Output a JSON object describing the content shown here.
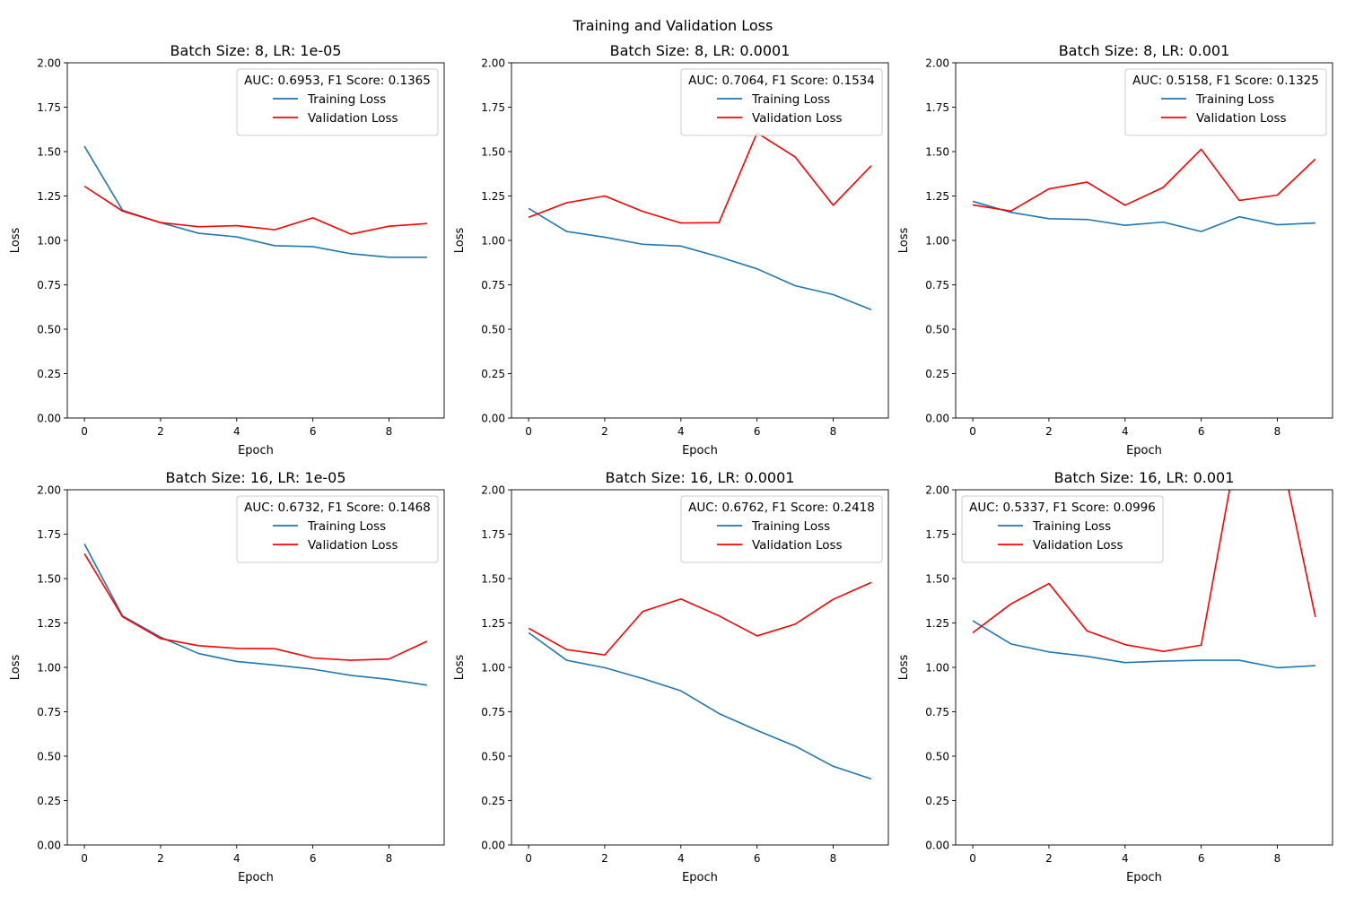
{
  "figure": {
    "title": "Training and Validation Loss"
  },
  "colors": {
    "training": "#1f77b4",
    "validation": "#ff0000"
  },
  "chart_data": [
    {
      "type": "line",
      "title": "Batch Size: 8, LR: 1e-05",
      "xlabel": "Epoch",
      "ylabel": "Loss",
      "xlim": [
        -0.45,
        9.45
      ],
      "ylim": [
        0,
        2
      ],
      "xticks": [
        0,
        2,
        4,
        6,
        8
      ],
      "yticks": [
        "0.00",
        "0.25",
        "0.50",
        "0.75",
        "1.00",
        "1.25",
        "1.50",
        "1.75",
        "2.00"
      ],
      "grid": false,
      "legend_title": "AUC: 0.6953, F1 Score: 0.1365",
      "legend_position": "upper right",
      "x": [
        0,
        1,
        2,
        3,
        4,
        5,
        6,
        7,
        8,
        9
      ],
      "series": [
        {
          "name": "Training Loss",
          "values": [
            1.53,
            1.17,
            1.1,
            1.04,
            1.02,
            0.97,
            0.965,
            0.925,
            0.905,
            0.905
          ]
        },
        {
          "name": "Validation Loss",
          "values": [
            1.305,
            1.165,
            1.1,
            1.077,
            1.083,
            1.06,
            1.127,
            1.035,
            1.08,
            1.095
          ]
        }
      ]
    },
    {
      "type": "line",
      "title": "Batch Size: 8, LR: 0.0001",
      "xlabel": "Epoch",
      "ylabel": "Loss",
      "xlim": [
        -0.45,
        9.45
      ],
      "ylim": [
        0,
        2
      ],
      "xticks": [
        0,
        2,
        4,
        6,
        8
      ],
      "yticks": [
        "0.00",
        "0.25",
        "0.50",
        "0.75",
        "1.00",
        "1.25",
        "1.50",
        "1.75",
        "2.00"
      ],
      "grid": false,
      "legend_title": "AUC: 0.7064, F1 Score: 0.1534",
      "legend_position": "upper right",
      "x": [
        0,
        1,
        2,
        3,
        4,
        5,
        6,
        7,
        8,
        9
      ],
      "series": [
        {
          "name": "Training Loss",
          "values": [
            1.18,
            1.05,
            1.018,
            0.978,
            0.968,
            0.908,
            0.84,
            0.745,
            0.695,
            0.61
          ]
        },
        {
          "name": "Validation Loss",
          "values": [
            1.13,
            1.212,
            1.25,
            1.163,
            1.098,
            1.1,
            1.605,
            1.47,
            1.198,
            1.42
          ]
        }
      ]
    },
    {
      "type": "line",
      "title": "Batch Size: 8, LR: 0.001",
      "xlabel": "Epoch",
      "ylabel": "Loss",
      "xlim": [
        -0.45,
        9.45
      ],
      "ylim": [
        0,
        2
      ],
      "xticks": [
        0,
        2,
        4,
        6,
        8
      ],
      "yticks": [
        "0.00",
        "0.25",
        "0.50",
        "0.75",
        "1.00",
        "1.25",
        "1.50",
        "1.75",
        "2.00"
      ],
      "grid": false,
      "legend_title": "AUC: 0.5158, F1 Score: 0.1325",
      "legend_position": "upper right",
      "x": [
        0,
        1,
        2,
        3,
        4,
        5,
        6,
        7,
        8,
        9
      ],
      "series": [
        {
          "name": "Training Loss",
          "values": [
            1.22,
            1.158,
            1.122,
            1.118,
            1.085,
            1.103,
            1.05,
            1.133,
            1.088,
            1.098
          ]
        },
        {
          "name": "Validation Loss",
          "values": [
            1.2,
            1.165,
            1.29,
            1.328,
            1.198,
            1.298,
            1.513,
            1.225,
            1.255,
            1.458
          ]
        }
      ]
    },
    {
      "type": "line",
      "title": "Batch Size: 16, LR: 1e-05",
      "xlabel": "Epoch",
      "ylabel": "Loss",
      "xlim": [
        -0.45,
        9.45
      ],
      "ylim": [
        0,
        2
      ],
      "xticks": [
        0,
        2,
        4,
        6,
        8
      ],
      "yticks": [
        "0.00",
        "0.25",
        "0.50",
        "0.75",
        "1.00",
        "1.25",
        "1.50",
        "1.75",
        "2.00"
      ],
      "grid": false,
      "legend_title": "AUC: 0.6732, F1 Score: 0.1468",
      "legend_position": "upper right",
      "x": [
        0,
        1,
        2,
        3,
        4,
        5,
        6,
        7,
        8,
        9
      ],
      "series": [
        {
          "name": "Training Loss",
          "values": [
            1.695,
            1.29,
            1.17,
            1.078,
            1.033,
            1.013,
            0.99,
            0.955,
            0.932,
            0.9
          ]
        },
        {
          "name": "Validation Loss",
          "values": [
            1.64,
            1.285,
            1.162,
            1.122,
            1.107,
            1.105,
            1.053,
            1.04,
            1.047,
            1.147
          ]
        }
      ]
    },
    {
      "type": "line",
      "title": "Batch Size: 16, LR: 0.0001",
      "xlabel": "Epoch",
      "ylabel": "Loss",
      "xlim": [
        -0.45,
        9.45
      ],
      "ylim": [
        0,
        2
      ],
      "xticks": [
        0,
        2,
        4,
        6,
        8
      ],
      "yticks": [
        "0.00",
        "0.25",
        "0.50",
        "0.75",
        "1.00",
        "1.25",
        "1.50",
        "1.75",
        "2.00"
      ],
      "grid": false,
      "legend_title": "AUC: 0.6762, F1 Score: 0.2418",
      "legend_position": "upper right",
      "x": [
        0,
        1,
        2,
        3,
        4,
        5,
        6,
        7,
        8,
        9
      ],
      "series": [
        {
          "name": "Training Loss",
          "values": [
            1.195,
            1.04,
            0.998,
            0.937,
            0.868,
            0.74,
            0.645,
            0.557,
            0.443,
            0.372
          ]
        },
        {
          "name": "Validation Loss",
          "values": [
            1.22,
            1.1,
            1.07,
            1.315,
            1.385,
            1.29,
            1.177,
            1.243,
            1.383,
            1.478
          ]
        }
      ]
    },
    {
      "type": "line",
      "title": "Batch Size: 16, LR: 0.001",
      "xlabel": "Epoch",
      "ylabel": "Loss",
      "xlim": [
        -0.45,
        9.45
      ],
      "ylim": [
        0,
        2
      ],
      "xticks": [
        0,
        2,
        4,
        6,
        8
      ],
      "yticks": [
        "0.00",
        "0.25",
        "0.50",
        "0.75",
        "1.00",
        "1.25",
        "1.50",
        "1.75",
        "2.00"
      ],
      "grid": false,
      "legend_title": "AUC: 0.5337, F1 Score: 0.0996",
      "legend_position": "upper left",
      "x": [
        0,
        1,
        2,
        3,
        4,
        5,
        6,
        7,
        8,
        9
      ],
      "series": [
        {
          "name": "Training Loss",
          "values": [
            1.262,
            1.132,
            1.087,
            1.062,
            1.027,
            1.035,
            1.04,
            1.04,
            0.998,
            1.01
          ]
        },
        {
          "name": "Validation Loss",
          "values": [
            1.195,
            1.357,
            1.472,
            1.205,
            1.128,
            1.09,
            1.125,
            2.3,
            2.3,
            1.283
          ]
        }
      ]
    }
  ]
}
